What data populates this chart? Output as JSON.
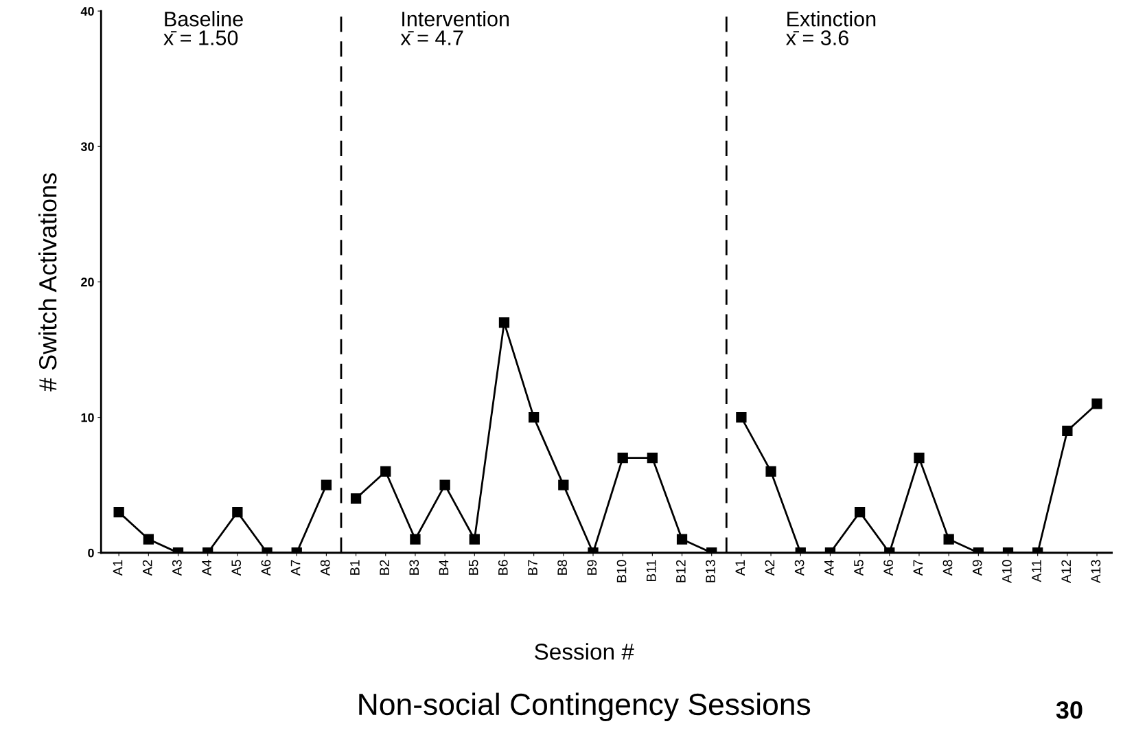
{
  "chart_data": {
    "type": "line",
    "title": "Non-social Contingency Sessions",
    "xlabel": "Session #",
    "ylabel": "# Switch Activations",
    "categories": [
      "A1",
      "A2",
      "A3",
      "A4",
      "A5",
      "A6",
      "A7",
      "A8",
      "B1",
      "B2",
      "B3",
      "B4",
      "B5",
      "B6",
      "B7",
      "B8",
      "B9",
      "B10",
      "B11",
      "B12",
      "B13",
      "A1",
      "A2",
      "A3",
      "A4",
      "A5",
      "A6",
      "A7",
      "A8",
      "A9",
      "A10",
      "A11",
      "A12",
      "A13"
    ],
    "series": [
      {
        "color": "#000000",
        "values": [
          3,
          1,
          0,
          0,
          3,
          0,
          0,
          5,
          null,
          null,
          null,
          null,
          null,
          null,
          null,
          null,
          null,
          null,
          null,
          null,
          null,
          null,
          null,
          null,
          null,
          null,
          null,
          null,
          null,
          null,
          null,
          null,
          null,
          null
        ]
      },
      {
        "color": "#000000",
        "values": [
          null,
          null,
          null,
          null,
          null,
          null,
          null,
          null,
          4,
          6,
          1,
          5,
          1,
          17,
          10,
          5,
          0,
          7,
          7,
          1,
          0,
          null,
          null,
          null,
          null,
          null,
          null,
          null,
          null,
          null,
          null,
          null,
          null,
          null
        ]
      },
      {
        "color": "#000000",
        "values": [
          null,
          null,
          null,
          null,
          null,
          null,
          null,
          null,
          null,
          null,
          null,
          null,
          null,
          null,
          null,
          null,
          null,
          null,
          null,
          null,
          null,
          10,
          6,
          0,
          0,
          3,
          0,
          7,
          1,
          0,
          0,
          0,
          9,
          11
        ]
      }
    ],
    "annotations": [
      "Baseline\nx̄ = 1.50",
      "Intervention\nx̄ = 4.7",
      "Extinction\nx̄ = 3.6",
      "30"
    ],
    "ylim": [
      0,
      40
    ],
    "yticks": [
      0,
      10,
      20,
      30,
      40
    ],
    "grid": false,
    "legend": false,
    "marker": "square",
    "line_style": "solid"
  }
}
